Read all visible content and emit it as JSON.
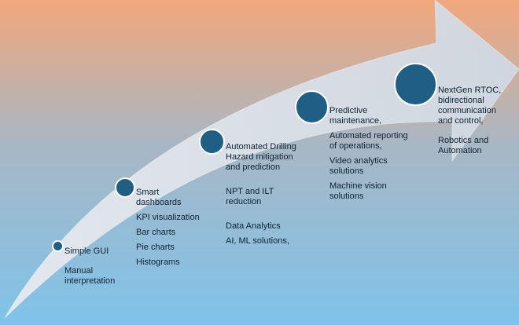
{
  "stages": [
    {
      "id": "stage-1",
      "lines": [
        "Simple GUI"
      ],
      "notes": [
        [
          "Manual",
          "interpretation"
        ]
      ]
    },
    {
      "id": "stage-2",
      "lines": [
        "Smart",
        "dashboards"
      ],
      "notes": [
        [
          "KPI visualization"
        ],
        [
          "Bar charts"
        ],
        [
          "Pie charts"
        ],
        [
          "Histograms"
        ]
      ]
    },
    {
      "id": "stage-3",
      "lines": [
        "Automated Drilling",
        "Hazard mitigation",
        "and prediction"
      ],
      "notes": [
        [
          "NPT and ILT",
          "reduction"
        ],
        [
          "Data Analytics"
        ],
        [
          "AI, ML  solutions,"
        ]
      ]
    },
    {
      "id": "stage-4",
      "lines": [
        "Predictive",
        "maintenance,"
      ],
      "notes": [
        [
          "Automated reporting",
          "of operations,"
        ],
        [
          "Video analytics",
          "solutions"
        ],
        [
          "Machine vision",
          "solutions"
        ]
      ]
    },
    {
      "id": "stage-5",
      "lines": [
        "NextGen RTOC,",
        "bidirectional",
        "communication",
        "and control,"
      ],
      "notes": [
        [
          "Robotics and",
          "Automation"
        ]
      ]
    }
  ],
  "colors": {
    "bg_top": "#f2a77c",
    "bg_mid": "#a7b7c5",
    "bg_bottom": "#7fc3ea",
    "arrow": "#d7dde5",
    "node_fill": "#1f5f86",
    "node_border": "#ffffff",
    "text": "#0f2233"
  }
}
